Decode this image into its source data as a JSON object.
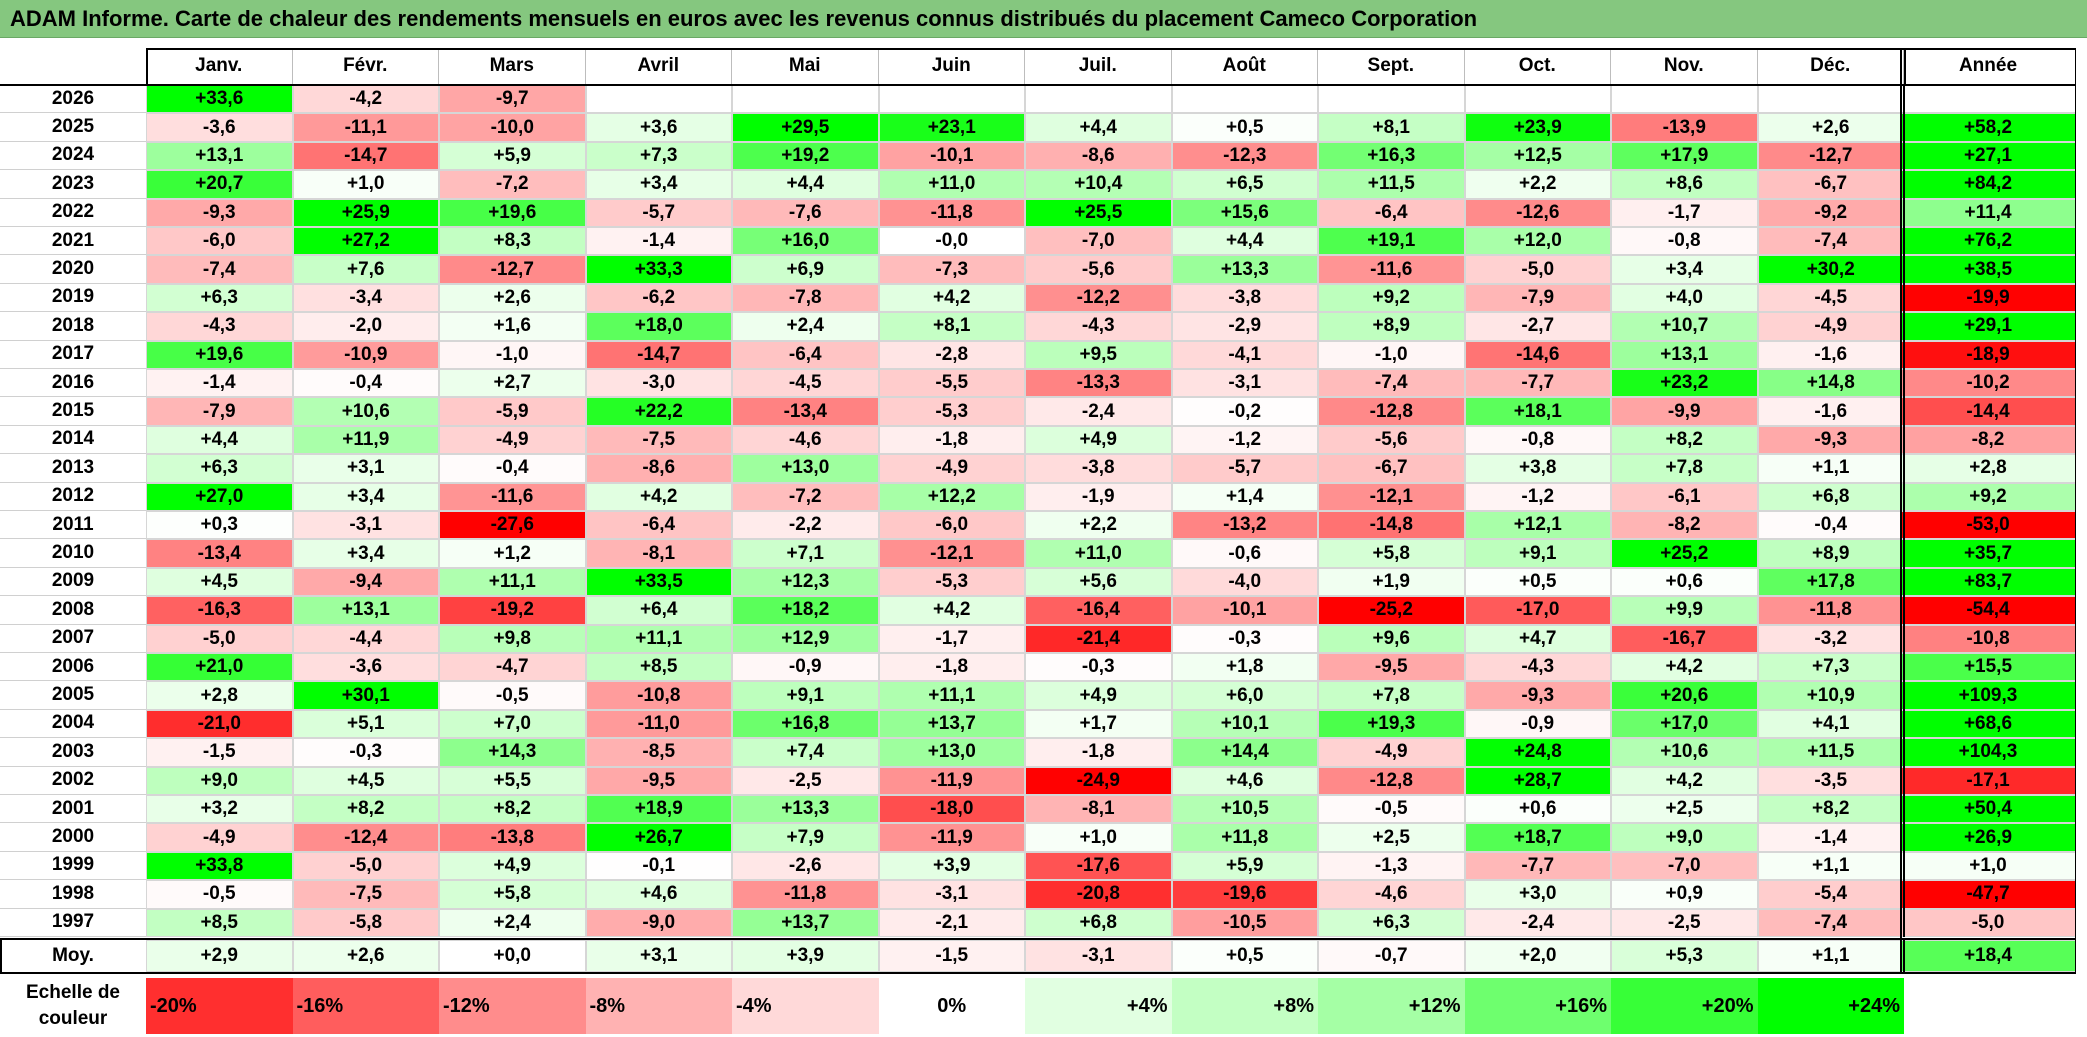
{
  "title": "ADAM Informe. Carte de chaleur des rendements mensuels en euros avec les revenus connus distribués du placement Cameco Corporation",
  "months": [
    "Janv.",
    "Févr.",
    "Mars",
    "Avril",
    "Mai",
    "Juin",
    "Juil.",
    "Août",
    "Sept.",
    "Oct.",
    "Nov.",
    "Déc."
  ],
  "year_header": "Année",
  "avg_label": "Moy.",
  "scale_label": "Echelle de couleur",
  "colors": {
    "title_bar": "#85C77F",
    "max_red": "#FF0000",
    "max_green": "#00FF00",
    "neutral": "#FFFFFF"
  },
  "chart_data": {
    "type": "heatmap",
    "title": "ADAM Informe. Carte de chaleur des rendements mensuels en euros avec les revenus connus distribués du placement Cameco Corporation",
    "x_categories": [
      "Janv.",
      "Févr.",
      "Mars",
      "Avril",
      "Mai",
      "Juin",
      "Juil.",
      "Août",
      "Sept.",
      "Oct.",
      "Nov.",
      "Déc."
    ],
    "rows": [
      {
        "year": "2026",
        "values": [
          "+33,6",
          "-4,2",
          "-9,7",
          "",
          "",
          "",
          "",
          "",
          "",
          "",
          "",
          ""
        ],
        "annual": ""
      },
      {
        "year": "2025",
        "values": [
          "-3,6",
          "-11,1",
          "-10,0",
          "+3,6",
          "+29,5",
          "+23,1",
          "+4,4",
          "+0,5",
          "+8,1",
          "+23,9",
          "-13,9",
          "+2,6"
        ],
        "annual": "+58,2"
      },
      {
        "year": "2024",
        "values": [
          "+13,1",
          "-14,7",
          "+5,9",
          "+7,3",
          "+19,2",
          "-10,1",
          "-8,6",
          "-12,3",
          "+16,3",
          "+12,5",
          "+17,9",
          "-12,7"
        ],
        "annual": "+27,1"
      },
      {
        "year": "2023",
        "values": [
          "+20,7",
          "+1,0",
          "-7,2",
          "+3,4",
          "+4,4",
          "+11,0",
          "+10,4",
          "+6,5",
          "+11,5",
          "+2,2",
          "+8,6",
          "-6,7"
        ],
        "annual": "+84,2"
      },
      {
        "year": "2022",
        "values": [
          "-9,3",
          "+25,9",
          "+19,6",
          "-5,7",
          "-7,6",
          "-11,8",
          "+25,5",
          "+15,6",
          "-6,4",
          "-12,6",
          "-1,7",
          "-9,2"
        ],
        "annual": "+11,4"
      },
      {
        "year": "2021",
        "values": [
          "-6,0",
          "+27,2",
          "+8,3",
          "-1,4",
          "+16,0",
          "-0,0",
          "-7,0",
          "+4,4",
          "+19,1",
          "+12,0",
          "-0,8",
          "-7,4"
        ],
        "annual": "+76,2"
      },
      {
        "year": "2020",
        "values": [
          "-7,4",
          "+7,6",
          "-12,7",
          "+33,3",
          "+6,9",
          "-7,3",
          "-5,6",
          "+13,3",
          "-11,6",
          "-5,0",
          "+3,4",
          "+30,2"
        ],
        "annual": "+38,5"
      },
      {
        "year": "2019",
        "values": [
          "+6,3",
          "-3,4",
          "+2,6",
          "-6,2",
          "-7,8",
          "+4,2",
          "-12,2",
          "-3,8",
          "+9,2",
          "-7,9",
          "+4,0",
          "-4,5"
        ],
        "annual": "-19,9"
      },
      {
        "year": "2018",
        "values": [
          "-4,3",
          "-2,0",
          "+1,6",
          "+18,0",
          "+2,4",
          "+8,1",
          "-4,3",
          "-2,9",
          "+8,9",
          "-2,7",
          "+10,7",
          "-4,9"
        ],
        "annual": "+29,1"
      },
      {
        "year": "2017",
        "values": [
          "+19,6",
          "-10,9",
          "-1,0",
          "-14,7",
          "-6,4",
          "-2,8",
          "+9,5",
          "-4,1",
          "-1,0",
          "-14,6",
          "+13,1",
          "-1,6"
        ],
        "annual": "-18,9"
      },
      {
        "year": "2016",
        "values": [
          "-1,4",
          "-0,4",
          "+2,7",
          "-3,0",
          "-4,5",
          "-5,5",
          "-13,3",
          "-3,1",
          "-7,4",
          "-7,7",
          "+23,2",
          "+14,8"
        ],
        "annual": "-10,2"
      },
      {
        "year": "2015",
        "values": [
          "-7,9",
          "+10,6",
          "-5,9",
          "+22,2",
          "-13,4",
          "-5,3",
          "-2,4",
          "-0,2",
          "-12,8",
          "+18,1",
          "-9,9",
          "-1,6"
        ],
        "annual": "-14,4"
      },
      {
        "year": "2014",
        "values": [
          "+4,4",
          "+11,9",
          "-4,9",
          "-7,5",
          "-4,6",
          "-1,8",
          "+4,9",
          "-1,2",
          "-5,6",
          "-0,8",
          "+8,2",
          "-9,3"
        ],
        "annual": "-8,2"
      },
      {
        "year": "2013",
        "values": [
          "+6,3",
          "+3,1",
          "-0,4",
          "-8,6",
          "+13,0",
          "-4,9",
          "-3,8",
          "-5,7",
          "-6,7",
          "+3,8",
          "+7,8",
          "+1,1"
        ],
        "annual": "+2,8"
      },
      {
        "year": "2012",
        "values": [
          "+27,0",
          "+3,4",
          "-11,6",
          "+4,2",
          "-7,2",
          "+12,2",
          "-1,9",
          "+1,4",
          "-12,1",
          "-1,2",
          "-6,1",
          "+6,8"
        ],
        "annual": "+9,2"
      },
      {
        "year": "2011",
        "values": [
          "+0,3",
          "-3,1",
          "-27,6",
          "-6,4",
          "-2,2",
          "-6,0",
          "+2,2",
          "-13,2",
          "-14,8",
          "+12,1",
          "-8,2",
          "-0,4"
        ],
        "annual": "-53,0"
      },
      {
        "year": "2010",
        "values": [
          "-13,4",
          "+3,4",
          "+1,2",
          "-8,1",
          "+7,1",
          "-12,1",
          "+11,0",
          "-0,6",
          "+5,8",
          "+9,1",
          "+25,2",
          "+8,9"
        ],
        "annual": "+35,7"
      },
      {
        "year": "2009",
        "values": [
          "+4,5",
          "-9,4",
          "+11,1",
          "+33,5",
          "+12,3",
          "-5,3",
          "+5,6",
          "-4,0",
          "+1,9",
          "+0,5",
          "+0,6",
          "+17,8"
        ],
        "annual": "+83,7"
      },
      {
        "year": "2008",
        "values": [
          "-16,3",
          "+13,1",
          "-19,2",
          "+6,4",
          "+18,2",
          "+4,2",
          "-16,4",
          "-10,1",
          "-25,2",
          "-17,0",
          "+9,9",
          "-11,8"
        ],
        "annual": "-54,4"
      },
      {
        "year": "2007",
        "values": [
          "-5,0",
          "-4,4",
          "+9,8",
          "+11,1",
          "+12,9",
          "-1,7",
          "-21,4",
          "-0,3",
          "+9,6",
          "+4,7",
          "-16,7",
          "-3,2"
        ],
        "annual": "-10,8"
      },
      {
        "year": "2006",
        "values": [
          "+21,0",
          "-3,6",
          "-4,7",
          "+8,5",
          "-0,9",
          "-1,8",
          "-0,3",
          "+1,8",
          "-9,5",
          "-4,3",
          "+4,2",
          "+7,3"
        ],
        "annual": "+15,5"
      },
      {
        "year": "2005",
        "values": [
          "+2,8",
          "+30,1",
          "-0,5",
          "-10,8",
          "+9,1",
          "+11,1",
          "+4,9",
          "+6,0",
          "+7,8",
          "-9,3",
          "+20,6",
          "+10,9"
        ],
        "annual": "+109,3"
      },
      {
        "year": "2004",
        "values": [
          "-21,0",
          "+5,1",
          "+7,0",
          "-11,0",
          "+16,8",
          "+13,7",
          "+1,7",
          "+10,1",
          "+19,3",
          "-0,9",
          "+17,0",
          "+4,1"
        ],
        "annual": "+68,6"
      },
      {
        "year": "2003",
        "values": [
          "-1,5",
          "-0,3",
          "+14,3",
          "-8,5",
          "+7,4",
          "+13,0",
          "-1,8",
          "+14,4",
          "-4,9",
          "+24,8",
          "+10,6",
          "+11,5"
        ],
        "annual": "+104,3"
      },
      {
        "year": "2002",
        "values": [
          "+9,0",
          "+4,5",
          "+5,5",
          "-9,5",
          "-2,5",
          "-11,9",
          "-24,9",
          "+4,6",
          "-12,8",
          "+28,7",
          "+4,2",
          "-3,5"
        ],
        "annual": "-17,1"
      },
      {
        "year": "2001",
        "values": [
          "+3,2",
          "+8,2",
          "+8,2",
          "+18,9",
          "+13,3",
          "-18,0",
          "-8,1",
          "+10,5",
          "-0,5",
          "+0,6",
          "+2,5",
          "+8,2"
        ],
        "annual": "+50,4"
      },
      {
        "year": "2000",
        "values": [
          "-4,9",
          "-12,4",
          "-13,8",
          "+26,7",
          "+7,9",
          "-11,9",
          "+1,0",
          "+11,8",
          "+2,5",
          "+18,7",
          "+9,0",
          "-1,4"
        ],
        "annual": "+26,9"
      },
      {
        "year": "1999",
        "values": [
          "+33,8",
          "-5,0",
          "+4,9",
          "-0,1",
          "-2,6",
          "+3,9",
          "-17,6",
          "+5,9",
          "-1,3",
          "-7,7",
          "-7,0",
          "+1,1"
        ],
        "annual": "+1,0"
      },
      {
        "year": "1998",
        "values": [
          "-0,5",
          "-7,5",
          "+5,8",
          "+4,6",
          "-11,8",
          "-3,1",
          "-20,8",
          "-19,6",
          "-4,6",
          "+3,0",
          "+0,9",
          "-5,4"
        ],
        "annual": "-47,7"
      },
      {
        "year": "1997",
        "values": [
          "+8,5",
          "-5,8",
          "+2,4",
          "-9,0",
          "+13,7",
          "-2,1",
          "+6,8",
          "-10,5",
          "+6,3",
          "-2,4",
          "-2,5",
          "-7,4"
        ],
        "annual": "-5,0"
      }
    ],
    "averages": {
      "values": [
        "+2,9",
        "+2,6",
        "+0,0",
        "+3,1",
        "+3,9",
        "-1,5",
        "-3,1",
        "+0,5",
        "-0,7",
        "+2,0",
        "+5,3",
        "+1,1"
      ],
      "annual": "+18,4"
    },
    "scale": [
      "-20%",
      "-16%",
      "-12%",
      "-8%",
      "-4%",
      "0%",
      "+4%",
      "+8%",
      "+12%",
      "+16%",
      "+20%",
      "+24%"
    ]
  }
}
